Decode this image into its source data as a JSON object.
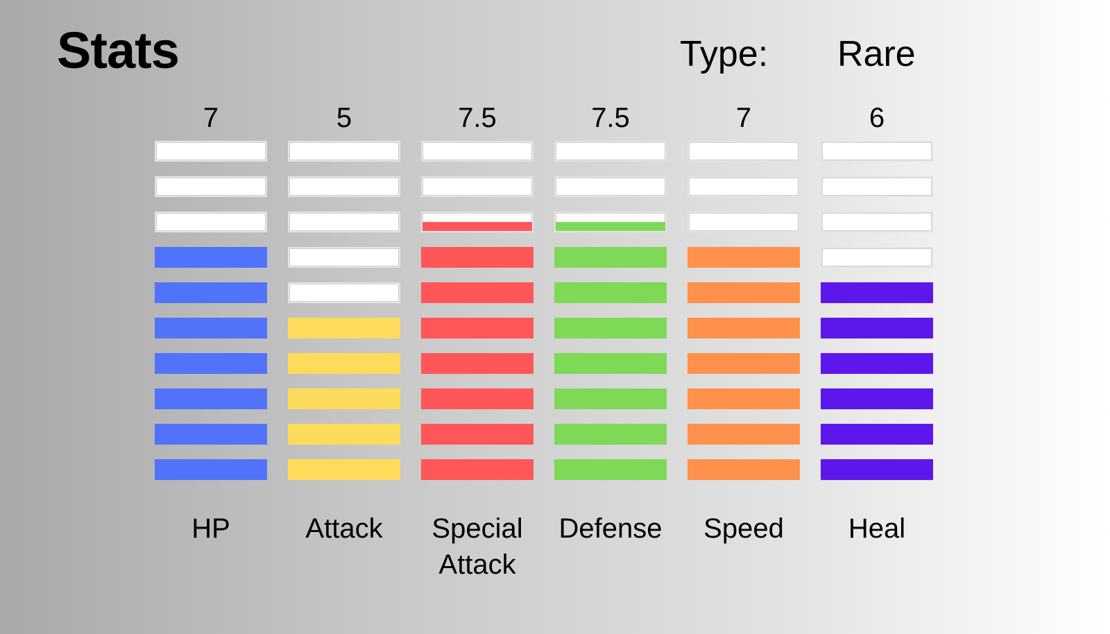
{
  "header": {
    "title": "Stats",
    "type_label": "Type:",
    "type_value": "Rare"
  },
  "chart_data": {
    "type": "bar",
    "categories": [
      "HP",
      "Attack",
      "Special Attack",
      "Defense",
      "Speed",
      "Heal"
    ],
    "values": [
      7,
      5,
      7.5,
      7.5,
      7,
      6
    ],
    "value_labels": [
      "7",
      "5",
      "7.5",
      "7.5",
      "7",
      "6"
    ],
    "max": 10,
    "segments": 10,
    "colors": [
      "#5173fa",
      "#ffdb5c",
      "#ff5757",
      "#7ed957",
      "#ff914d",
      "#5e17eb"
    ]
  }
}
